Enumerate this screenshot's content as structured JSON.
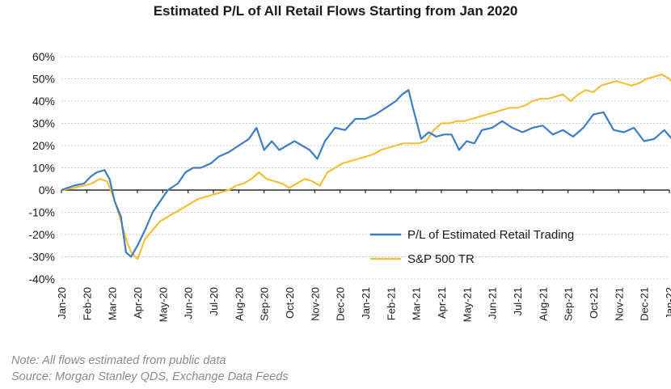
{
  "chart_data": {
    "type": "line",
    "title": "Estimated P/L of All Retail Flows Starting from Jan 2020",
    "xlabel": "",
    "ylabel": "",
    "ylim": [
      -40,
      60
    ],
    "y_ticks": [
      "60%",
      "50%",
      "40%",
      "30%",
      "20%",
      "10%",
      "0%",
      "-10%",
      "-20%",
      "-30%",
      "-40%"
    ],
    "y_tick_values": [
      60,
      50,
      40,
      30,
      20,
      10,
      0,
      -10,
      -20,
      -30,
      -40
    ],
    "grid": "horizontal dotted",
    "legend_position": "center-right",
    "categories": [
      "Jan-20",
      "Feb-20",
      "Mar-20",
      "Apr-20",
      "May-20",
      "Jun-20",
      "Jul-20",
      "Aug-20",
      "Sep-20",
      "Oct-20",
      "Nov-20",
      "Dec-20",
      "Jan-21",
      "Feb-21",
      "Mar-21",
      "Apr-21",
      "May-21",
      "Jun-21",
      "Jul-21",
      "Aug-21",
      "Sep-21",
      "Oct-21",
      "Nov-21",
      "Dec-21",
      "Jan-22"
    ],
    "series": [
      {
        "name": "P/L of Estimated Retail Trading",
        "color": "#3e7dc3",
        "x": [
          0,
          0.5,
          0.9,
          1.15,
          1.4,
          1.7,
          1.9,
          2.1,
          2.35,
          2.55,
          2.75,
          3.0,
          3.3,
          3.6,
          3.9,
          4.2,
          4.6,
          4.9,
          5.2,
          5.5,
          5.9,
          6.2,
          6.6,
          7.0,
          7.4,
          7.7,
          8.0,
          8.3,
          8.6,
          8.9,
          9.2,
          9.5,
          9.8,
          10.1,
          10.4,
          10.8,
          11.2,
          11.6,
          12.0,
          12.4,
          12.8,
          13.2,
          13.45,
          13.7,
          13.9,
          14.2,
          14.5,
          14.8,
          15.1,
          15.4,
          15.7,
          16.0,
          16.3,
          16.6,
          17.0,
          17.4,
          17.8,
          18.2,
          18.6,
          19.0,
          19.4,
          19.8,
          20.2,
          20.6,
          21.0,
          21.4,
          21.8,
          22.2,
          22.6,
          23.0,
          23.4,
          23.8,
          24.1,
          24.4
        ],
        "values": [
          0,
          2,
          3,
          6,
          8,
          9,
          5,
          -5,
          -12,
          -28,
          -30,
          -25,
          -18,
          -10,
          -5,
          0,
          3,
          8,
          10,
          10,
          12,
          15,
          17,
          20,
          23,
          28,
          18,
          22,
          18,
          20,
          22,
          20,
          18,
          14,
          22,
          28,
          27,
          32,
          32,
          34,
          37,
          40,
          43,
          45,
          36,
          23,
          26,
          24,
          25,
          25,
          18,
          22,
          21,
          27,
          28,
          31,
          28,
          26,
          28,
          29,
          25,
          27,
          24,
          28,
          34,
          35,
          27,
          26,
          28,
          22,
          23,
          27,
          23,
          18
        ]
      },
      {
        "name": "S&P 500 TR",
        "color": "#f2c03a",
        "x": [
          0,
          0.5,
          0.9,
          1.2,
          1.5,
          1.8,
          2.05,
          2.3,
          2.55,
          2.75,
          3.0,
          3.3,
          3.6,
          3.9,
          4.2,
          4.5,
          4.8,
          5.1,
          5.4,
          5.7,
          6.0,
          6.3,
          6.6,
          6.9,
          7.2,
          7.5,
          7.8,
          8.1,
          8.4,
          8.7,
          9.0,
          9.3,
          9.6,
          9.9,
          10.2,
          10.5,
          10.8,
          11.1,
          11.4,
          11.7,
          12.0,
          12.3,
          12.6,
          12.9,
          13.2,
          13.5,
          13.8,
          14.1,
          14.4,
          14.7,
          15.0,
          15.3,
          15.6,
          15.9,
          16.2,
          16.5,
          16.8,
          17.1,
          17.4,
          17.7,
          18.0,
          18.3,
          18.6,
          18.9,
          19.2,
          19.5,
          19.8,
          20.1,
          20.4,
          20.7,
          21.0,
          21.3,
          21.6,
          21.9,
          22.2,
          22.5,
          22.8,
          23.1,
          23.4,
          23.7,
          24.0,
          24.2,
          24.4
        ],
        "values": [
          0,
          1,
          2,
          3,
          5,
          4,
          -3,
          -12,
          -22,
          -28,
          -31,
          -22,
          -18,
          -14,
          -12,
          -10,
          -8,
          -6,
          -4,
          -3,
          -2,
          -1,
          0,
          2,
          3,
          5,
          8,
          5,
          4,
          3,
          1,
          3,
          5,
          4,
          2,
          8,
          10,
          12,
          13,
          14,
          15,
          16,
          18,
          19,
          20,
          21,
          21,
          21,
          22,
          27,
          30,
          30,
          31,
          31,
          32,
          33,
          34,
          35,
          36,
          37,
          37,
          38,
          40,
          41,
          41,
          42,
          43,
          40,
          43,
          45,
          44,
          47,
          48,
          49,
          48,
          47,
          48,
          50,
          51,
          52,
          50,
          47,
          46
        ]
      }
    ]
  },
  "note": "Note:  All flows estimated from public data",
  "source": "Source: Morgan Stanley QDS, Exchange Data Feeds"
}
